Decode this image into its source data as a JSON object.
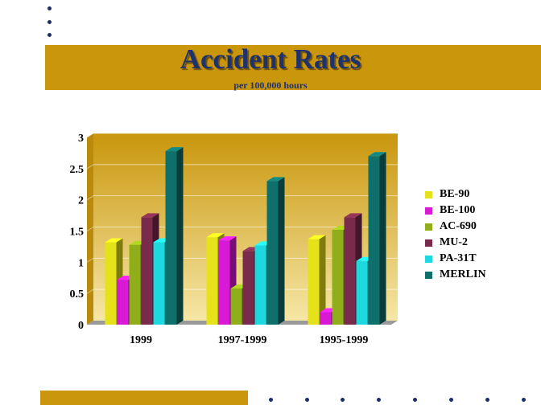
{
  "chart_data": {
    "type": "bar",
    "title": "Accident Rates",
    "subtitle": "per 100,000 hours",
    "xlabel": "",
    "ylabel": "",
    "categories": [
      "1999",
      "1997-1999",
      "1995-1999"
    ],
    "ylim": [
      0,
      3
    ],
    "yticks": [
      "0",
      "0.5",
      "1",
      "1.5",
      "2",
      "2.5",
      "3"
    ],
    "grid": true,
    "legend_position": "right",
    "series": [
      {
        "name": "BE-90",
        "color": "#e6e21a",
        "values": [
          1.32,
          1.4,
          1.37
        ]
      },
      {
        "name": "BE-100",
        "color": "#d81ad6",
        "values": [
          0.72,
          1.35,
          0.2
        ]
      },
      {
        "name": "AC-690",
        "color": "#8fae1a",
        "values": [
          1.28,
          0.58,
          1.52
        ]
      },
      {
        "name": "MU-2",
        "color": "#7a2a4a",
        "values": [
          1.72,
          1.18,
          1.72
        ]
      },
      {
        "name": "PA-31T",
        "color": "#1ed8e0",
        "values": [
          1.32,
          1.27,
          1.02
        ]
      },
      {
        "name": "MERLIN",
        "color": "#0f6f6a",
        "values": [
          2.78,
          2.3,
          2.7
        ]
      }
    ]
  }
}
